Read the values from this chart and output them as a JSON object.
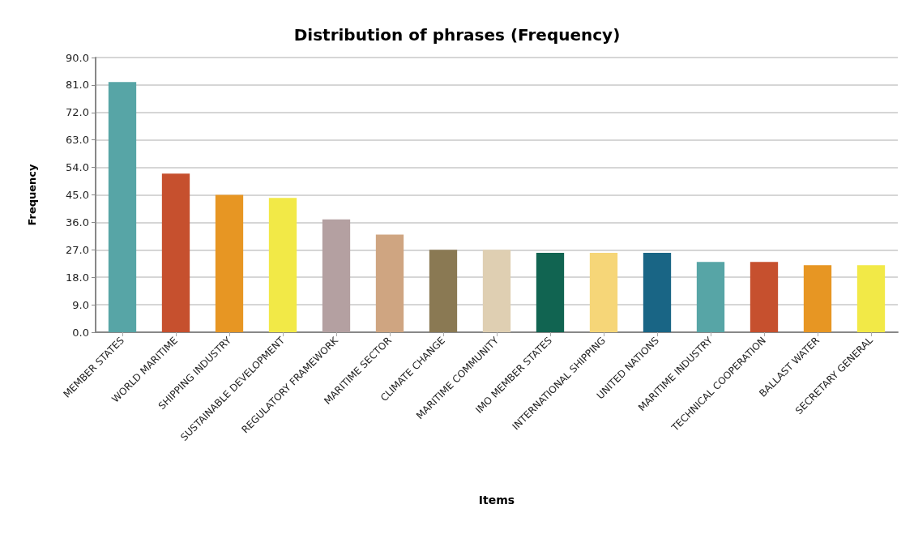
{
  "chart_data": {
    "type": "bar",
    "title": "Distribution of phrases (Frequency)",
    "xlabel": "Items",
    "ylabel": "Frequency",
    "categories": [
      "MEMBER STATES",
      "WORLD MARITIME",
      "SHIPPING INDUSTRY",
      "SUSTAINABLE DEVELOPMENT",
      "REGULATORY FRAMEWORK",
      "MARITIME SECTOR",
      "CLIMATE CHANGE",
      "MARITIME COMMUNITY",
      "IMO MEMBER STATES",
      "INTERNATIONAL SHIPPING",
      "UNITED NATIONS",
      "MARITIME INDUSTRY",
      "TECHNICAL COOPERATION",
      "BALLAST WATER",
      "SECRETARY GENERAL"
    ],
    "values": [
      82,
      52,
      45,
      44,
      37,
      32,
      27,
      27,
      26,
      26,
      26,
      23,
      23,
      22,
      22
    ],
    "colors": [
      "#57a5a6",
      "#c6502e",
      "#e79623",
      "#f2e947",
      "#b4a0a1",
      "#cfa581",
      "#8a7953",
      "#dfcfb2",
      "#116451",
      "#f6d678",
      "#196585",
      "#57a5a6",
      "#c6502e",
      "#e79623",
      "#f2e947"
    ],
    "ylim": [
      0,
      90
    ],
    "yticks": [
      {
        "value": 0,
        "label": "0.0"
      },
      {
        "value": 9,
        "label": "9.0"
      },
      {
        "value": 18,
        "label": "18.0"
      },
      {
        "value": 27,
        "label": "27.0"
      },
      {
        "value": 36,
        "label": "36.0"
      },
      {
        "value": 45,
        "label": "45.0"
      },
      {
        "value": 54,
        "label": "54.0"
      },
      {
        "value": 63,
        "label": "63.0"
      },
      {
        "value": 72,
        "label": "72.0"
      },
      {
        "value": 81,
        "label": "81.0"
      },
      {
        "value": 90,
        "label": "90.0"
      }
    ],
    "grid": "y"
  }
}
